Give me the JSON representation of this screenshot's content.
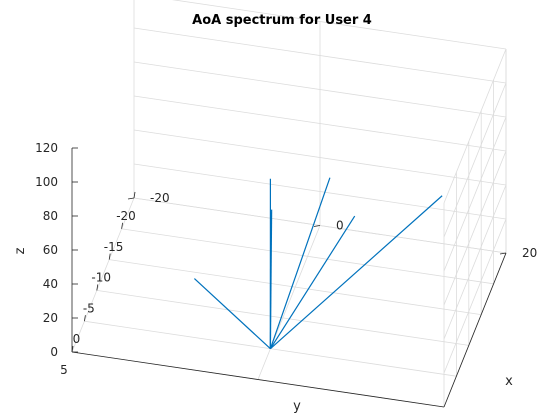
{
  "chart_data": {
    "type": "line",
    "title": "AoA spectrum for User 4",
    "xlabel": "x",
    "ylabel": "y",
    "zlabel": "z",
    "xlim": [
      -20,
      20
    ],
    "ylim": [
      -20,
      5
    ],
    "zlim": [
      0,
      120
    ],
    "x_ticks": [
      "-20",
      "0",
      "20"
    ],
    "y_ticks": [
      "5",
      "0",
      "-5",
      "-10",
      "-15",
      "-20"
    ],
    "z_ticks": [
      "0",
      "20",
      "40",
      "60",
      "80",
      "100",
      "120"
    ],
    "grid": true,
    "line_color": "#0072BD",
    "series": [
      {
        "x": [
          0,
          -7.8
        ],
        "y": [
          0,
          1.4
        ],
        "z": [
          0,
          40
        ]
      },
      {
        "x": [
          0,
          0
        ],
        "y": [
          0,
          0
        ],
        "z": [
          0,
          100
        ]
      },
      {
        "x": [
          0,
          0
        ],
        "y": [
          0,
          -0.1
        ],
        "z": [
          0,
          75
        ]
      },
      {
        "x": [
          0,
          0
        ],
        "y": [
          0,
          -0.5
        ],
        "z": [
          0,
          80
        ]
      },
      {
        "x": [
          0,
          6
        ],
        "y": [
          0,
          -1.5
        ],
        "z": [
          0,
          100
        ]
      },
      {
        "x": [
          0,
          8
        ],
        "y": [
          0,
          -4
        ],
        "z": [
          0,
          70
        ]
      },
      {
        "x": [
          0,
          15
        ],
        "y": [
          0,
          -13
        ],
        "z": [
          0,
          55
        ]
      }
    ]
  }
}
